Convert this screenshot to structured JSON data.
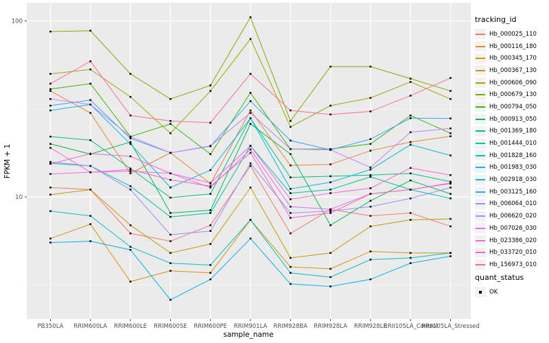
{
  "figure": {
    "y_axis": {
      "title": "FPKM + 1",
      "tick_labels": [
        "100",
        "10"
      ],
      "tick_values": [
        100,
        10
      ]
    },
    "x_axis": {
      "title": "sample_name"
    },
    "legend": {
      "color_title": "tracking_id",
      "shape_title": "quant_status",
      "shape_items": [
        "OK"
      ]
    }
  },
  "chart_data": {
    "type": "line",
    "title": "",
    "xlabel": "sample_name",
    "ylabel": "FPKM + 1",
    "y_scale": "log10",
    "ylim": [
      2.2,
      120
    ],
    "y_ticks": [
      10,
      100
    ],
    "y_minor_ticks": [
      3.162,
      31.62
    ],
    "grid": "white major and minor gridlines on gray panel",
    "legend_position": "right",
    "marker": "small black square (quant_status = OK)",
    "categories": [
      "PB350LA",
      "RRIM600LA",
      "RRIM600LE",
      "RRIM600SE",
      "RRIM600PE",
      "RRIM901LA",
      "RRIM928BA",
      "RRIM928LA",
      "RRIM928LE",
      "RRII105LA_Control",
      "RRII105LA_Stressed"
    ],
    "series": [
      {
        "name": "Hb_000025_110",
        "color": "#F8766D",
        "values": [
          11.3,
          11.0,
          6.2,
          5.6,
          6.9,
          15.0,
          6.2,
          8.5,
          7.8,
          8.1,
          6.8
        ]
      },
      {
        "name": "Hb_000116_180",
        "color": "#EA8331",
        "values": [
          40,
          30,
          13.6,
          17.8,
          11.9,
          31,
          15.1,
          15.3,
          18.3,
          20.5,
          22.1
        ]
      },
      {
        "name": "Hb_000345_170",
        "color": "#D89000",
        "values": [
          5.8,
          7.0,
          3.3,
          3.8,
          3.7,
          7.4,
          4.0,
          3.9,
          4.9,
          4.8,
          4.8
        ]
      },
      {
        "name": "Hb_000367_130",
        "color": "#C09B00",
        "values": [
          10.3,
          11.0,
          6.9,
          4.8,
          5.4,
          11.3,
          4.5,
          4.8,
          6.8,
          7.4,
          7.5
        ]
      },
      {
        "name": "Hb_000606_090",
        "color": "#A3A500",
        "values": [
          50,
          53,
          37,
          23,
          40,
          79,
          25,
          33,
          36.5,
          45,
          36
        ]
      },
      {
        "name": "Hb_000679_130",
        "color": "#7CAE00",
        "values": [
          87,
          88,
          50,
          36,
          43,
          105,
          27,
          55,
          55,
          47,
          40
        ]
      },
      {
        "name": "Hb_000794_050",
        "color": "#39B600",
        "values": [
          41,
          44,
          22,
          26,
          17.5,
          39,
          18.7,
          18.7,
          20,
          29,
          23
        ]
      },
      {
        "name": "Hb_000913_050",
        "color": "#00BB4E",
        "values": [
          20,
          17.5,
          20.5,
          8.1,
          8.4,
          26,
          17.5,
          6.9,
          9.5,
          12.4,
          10.4
        ]
      },
      {
        "name": "Hb_001369_180",
        "color": "#00BF7D",
        "values": [
          22,
          21,
          14.5,
          9.9,
          10.4,
          28,
          12.9,
          13.1,
          13.3,
          13.6,
          12.2
        ]
      },
      {
        "name": "Hb_001444_010",
        "color": "#00C1A3",
        "values": [
          15.5,
          15.0,
          11.5,
          7.7,
          8.1,
          19.5,
          10.5,
          11.0,
          13.0,
          11.0,
          9.8
        ]
      },
      {
        "name": "Hb_001828_160",
        "color": "#00BFC4",
        "values": [
          8.3,
          7.8,
          5.2,
          4.2,
          4.1,
          7.4,
          3.7,
          3.5,
          4.4,
          4.5,
          4.8
        ]
      },
      {
        "name": "Hb_001983_030",
        "color": "#00BAE0",
        "values": [
          31,
          33.5,
          20,
          11.3,
          14.2,
          28,
          11.1,
          12.1,
          14.3,
          19.8,
          17.2
        ]
      },
      {
        "name": "Hb_002918_030",
        "color": "#00B0F6",
        "values": [
          5.5,
          5.6,
          5.0,
          2.6,
          3.4,
          5.8,
          3.2,
          3.1,
          3.4,
          4.2,
          4.6
        ]
      },
      {
        "name": "Hb_003125_160",
        "color": "#35A2FF",
        "values": [
          33,
          35.5,
          21.5,
          17.8,
          19.4,
          35,
          20.9,
          18.5,
          21.3,
          28,
          27.9
        ]
      },
      {
        "name": "Hb_006064_010",
        "color": "#9590FF",
        "values": [
          15.8,
          15.0,
          11.0,
          6.1,
          6.4,
          15.5,
          8.1,
          8.3,
          8.8,
          9.8,
          11.3
        ]
      },
      {
        "name": "Hb_006620_020",
        "color": "#C77CFF",
        "values": [
          36,
          33.5,
          22,
          17.8,
          19.5,
          30,
          18.7,
          18.5,
          14.7,
          23.3,
          24.5
        ]
      },
      {
        "name": "Hb_007026_030",
        "color": "#E76BF3",
        "values": [
          13.5,
          13.8,
          14.0,
          13.6,
          11.3,
          18.6,
          8.8,
          8.5,
          10.4,
          11.0,
          11.9
        ]
      },
      {
        "name": "Hb_023386_020",
        "color": "#FA62DB",
        "values": [
          15.4,
          17.6,
          17.0,
          13.6,
          12.0,
          19.5,
          9.7,
          10.5,
          11.2,
          14.6,
          13.3
        ]
      },
      {
        "name": "Hb_033720_010",
        "color": "#FF62BC",
        "values": [
          19.0,
          13.8,
          14.3,
          12.5,
          11.5,
          17.8,
          7.6,
          8.1,
          10.4,
          11.0,
          12.0
        ]
      },
      {
        "name": "Hb_156973_010",
        "color": "#FF6A98",
        "values": [
          44,
          59,
          29,
          27,
          26.4,
          50,
          31,
          29.4,
          30.6,
          37.6,
          47.4
        ]
      }
    ]
  },
  "colors": {
    "panel_bg": "#EBEBEB",
    "grid_major": "#FFFFFF",
    "grid_minor": "#F5F5F5",
    "tick_mark": "#333333",
    "tick_text": "#4D4D4D",
    "axis_title_text": "#000000",
    "legend_key_bg": "#F2F2F2",
    "marker": "#000000"
  }
}
